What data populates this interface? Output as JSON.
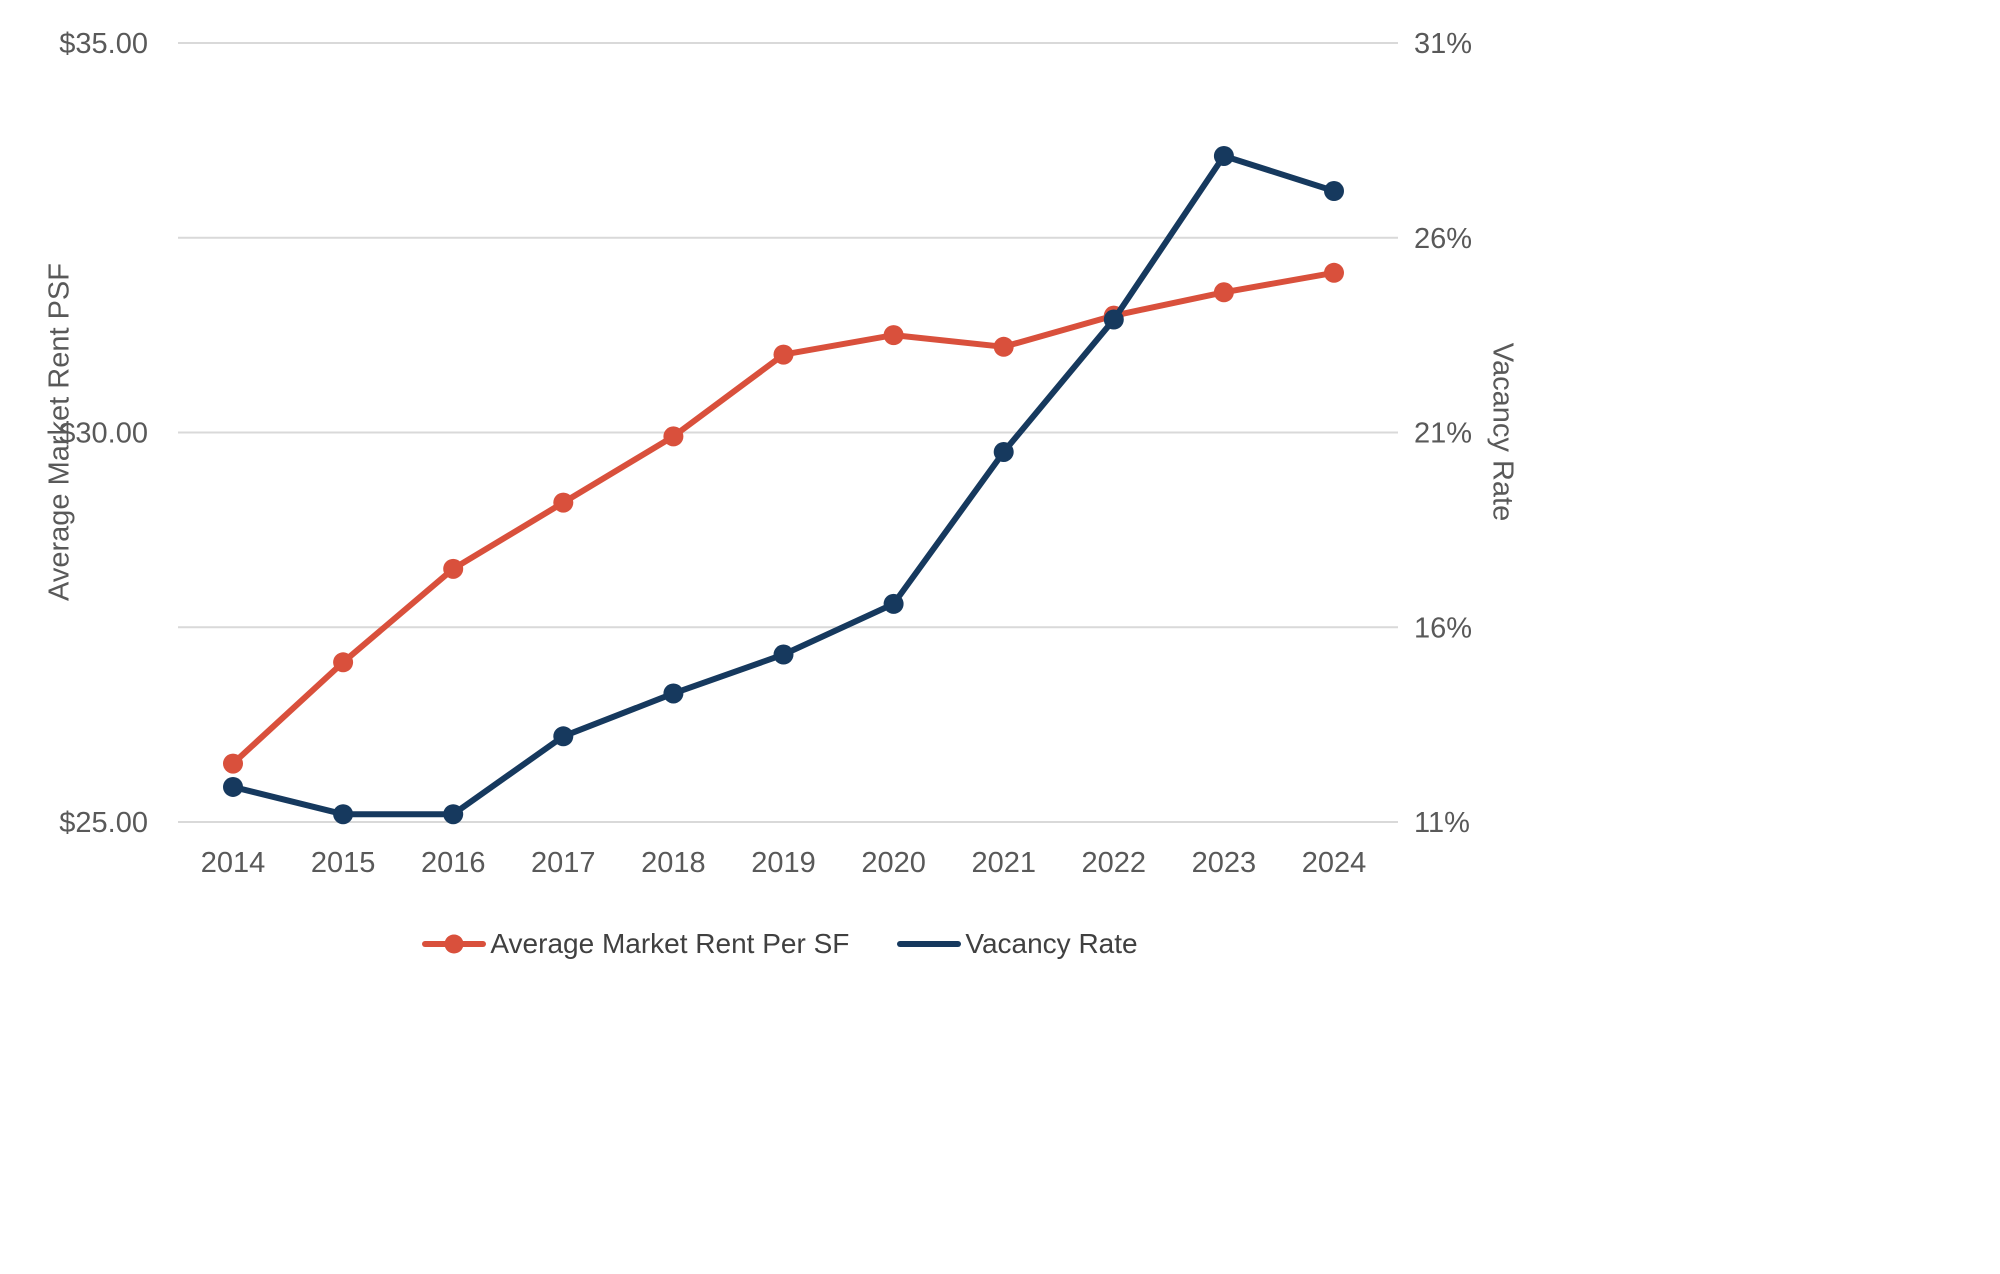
{
  "chart_data": {
    "type": "line",
    "x": [
      2014,
      2015,
      2016,
      2017,
      2018,
      2019,
      2020,
      2021,
      2022,
      2023,
      2024
    ],
    "series": [
      {
        "name": "Average Market Rent Per SF",
        "axis": "left",
        "color": "#D9503C",
        "marker": "circle",
        "values": [
          25.75,
          27.05,
          28.25,
          29.1,
          29.95,
          31.0,
          31.25,
          31.1,
          31.5,
          31.8,
          32.05
        ]
      },
      {
        "name": "Vacancy Rate",
        "axis": "right",
        "color": "#16395E",
        "marker": "circle",
        "values": [
          11.9,
          11.2,
          11.2,
          13.2,
          14.3,
          15.3,
          16.6,
          20.5,
          23.9,
          28.1,
          27.2
        ]
      }
    ],
    "left_axis": {
      "label": "Average Market Rent PSF",
      "min": 25,
      "max": 35,
      "ticks": [
        {
          "value": 25,
          "label": "$25.00"
        },
        {
          "value": 30,
          "label": "$30.00"
        },
        {
          "value": 35,
          "label": "$35.00"
        }
      ]
    },
    "right_axis": {
      "label": "Vacancy Rate",
      "min": 11,
      "max": 31,
      "ticks": [
        {
          "value": 11,
          "label": "11%"
        },
        {
          "value": 16,
          "label": "16%"
        },
        {
          "value": 21,
          "label": "21%"
        },
        {
          "value": 26,
          "label": "26%"
        },
        {
          "value": 31,
          "label": "31%"
        }
      ]
    },
    "gridlines": {
      "at_right_axis_values": [
        11,
        16,
        21,
        26,
        31
      ],
      "color": "#D9D9D9"
    },
    "legend": {
      "position": "bottom",
      "items": [
        "Average Market Rent Per SF",
        "Vacancy Rate"
      ]
    },
    "styles": {
      "tick_label_color": "#595959",
      "axis_title_color": "#595959",
      "line_width": 6,
      "point_radius": 10
    }
  }
}
